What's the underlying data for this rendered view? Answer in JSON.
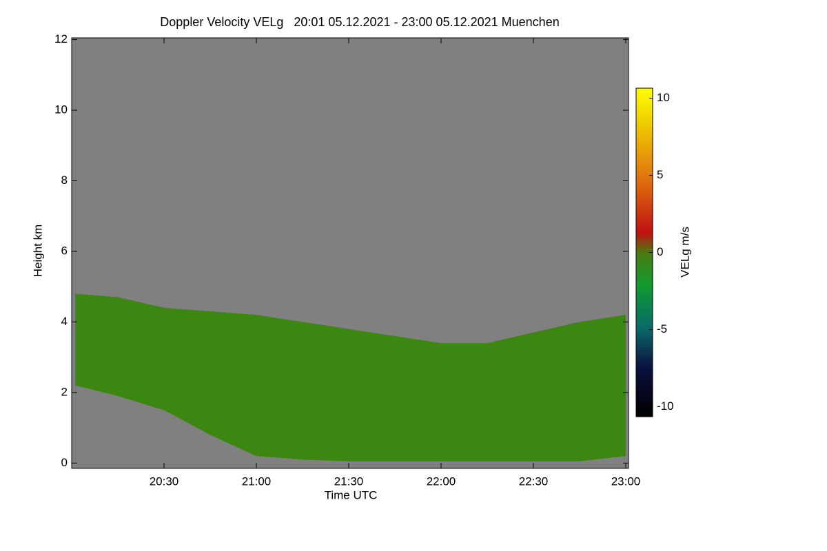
{
  "chart_data": {
    "type": "area",
    "title": "Doppler Velocity VELg   20:01 05.12.2021 - 23:00 05.12.2021 Muenchen",
    "x_label": "Time UTC",
    "y_label": "Height km",
    "x": [
      20.02,
      20.25,
      20.5,
      20.75,
      21.0,
      21.25,
      21.5,
      21.75,
      22.0,
      22.25,
      22.5,
      22.75,
      23.0
    ],
    "values": [
      4.8,
      4.7,
      4.4,
      4.3,
      4.2,
      4.0,
      3.8,
      3.6,
      3.4,
      3.4,
      3.7,
      4.0,
      4.2
    ],
    "base_values": [
      2.2,
      1.9,
      1.5,
      0.8,
      0.2,
      0.1,
      0.05,
      0.05,
      0.05,
      0.05,
      0.05,
      0.05,
      0.2
    ],
    "color": "#3c8612",
    "background": "#808080",
    "xlim": [
      20.0,
      23.015
    ],
    "xticks": [
      {
        "value": 20.5,
        "label": "20:30"
      },
      {
        "value": 21.0,
        "label": "21:00"
      },
      {
        "value": 21.5,
        "label": "21:30"
      },
      {
        "value": 22.0,
        "label": "22:00"
      },
      {
        "value": 22.5,
        "label": "22:30"
      },
      {
        "value": 23.0,
        "label": "23:00"
      }
    ],
    "ylim": [
      -0.15,
      12.05
    ],
    "yticks": [
      0,
      2,
      4,
      6,
      8,
      10,
      12
    ],
    "colorbar": {
      "label": "VELg m/s",
      "lim": [
        -10.65,
        10.65
      ],
      "ticks": [
        -10,
        -5,
        0,
        5,
        10
      ]
    }
  }
}
